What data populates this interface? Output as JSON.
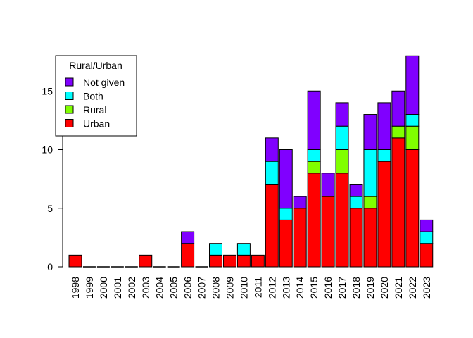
{
  "chart_data": {
    "type": "bar",
    "stacked": true,
    "title": "",
    "xlabel": "",
    "ylabel": "",
    "ylim": [
      0,
      18
    ],
    "yticks": [
      0,
      5,
      10,
      15
    ],
    "categories": [
      "1998",
      "1999",
      "2000",
      "2001",
      "2002",
      "2003",
      "2004",
      "2005",
      "2006",
      "2007",
      "2008",
      "2009",
      "2010",
      "2011",
      "2012",
      "2013",
      "2014",
      "2015",
      "2016",
      "2017",
      "2018",
      "2019",
      "2020",
      "2021",
      "2022",
      "2023"
    ],
    "series": [
      {
        "name": "Urban",
        "color": "#FF0000",
        "values": [
          1,
          0,
          0,
          0,
          0,
          1,
          0,
          0,
          2,
          0,
          1,
          1,
          1,
          1,
          7,
          4,
          5,
          8,
          6,
          8,
          5,
          5,
          9,
          11,
          10,
          2
        ]
      },
      {
        "name": "Rural",
        "color": "#80FF00",
        "values": [
          0,
          0,
          0,
          0,
          0,
          0,
          0,
          0,
          0,
          0,
          0,
          0,
          0,
          0,
          0,
          0,
          0,
          1,
          0,
          2,
          0,
          1,
          0,
          1,
          2,
          0
        ]
      },
      {
        "name": "Both",
        "color": "#00FFFF",
        "values": [
          0,
          0,
          0,
          0,
          0,
          0,
          0,
          0,
          0,
          0,
          1,
          0,
          1,
          0,
          2,
          1,
          0,
          1,
          0,
          2,
          1,
          4,
          1,
          0,
          1,
          1
        ]
      },
      {
        "name": "Not given",
        "color": "#8000FF",
        "values": [
          0,
          0,
          0,
          0,
          0,
          0,
          0,
          0,
          1,
          0,
          0,
          0,
          0,
          0,
          2,
          5,
          1,
          5,
          2,
          2,
          1,
          3,
          4,
          3,
          5,
          1
        ]
      }
    ],
    "legend": {
      "title": "Rural/Urban",
      "position": "top-left",
      "order": [
        "Not given",
        "Both",
        "Rural",
        "Urban"
      ]
    }
  }
}
